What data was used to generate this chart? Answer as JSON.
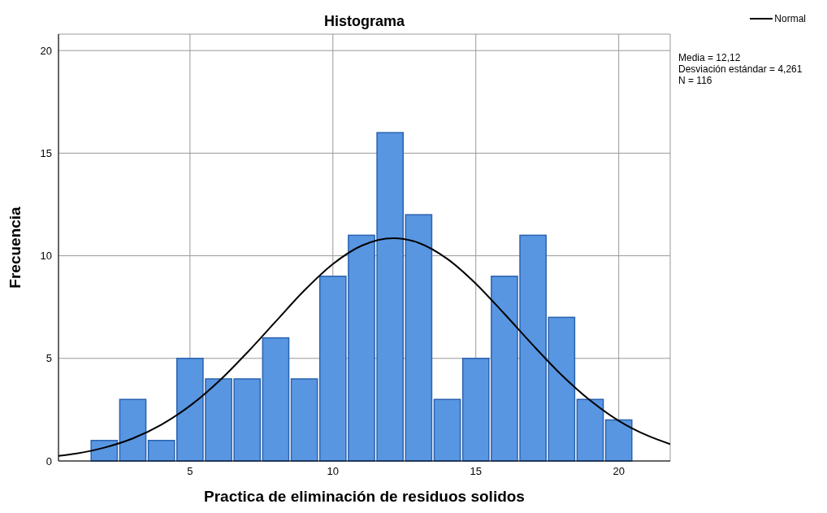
{
  "chart_data": {
    "type": "histogram",
    "title": "Histograma",
    "xlabel": "Practica de eliminación de residuos solidos",
    "ylabel": "Frecuencia",
    "bins": [
      1.5,
      2.5,
      3.5,
      4.5,
      5.5,
      6.5,
      7.5,
      8.5,
      9.5,
      10.5,
      11.5,
      12.5,
      13.5,
      14.5,
      15.5,
      16.5,
      17.5,
      18.5,
      19.5,
      20.5
    ],
    "values": [
      1,
      3,
      1,
      5,
      4,
      4,
      6,
      4,
      9,
      11,
      16,
      12,
      3,
      5,
      9,
      11,
      7,
      3,
      2
    ],
    "color": "#5896e2",
    "series": [
      {
        "type": "line",
        "name": "Normal",
        "color": "#000000",
        "x": [
          0.4,
          1,
          2,
          3,
          4,
          5,
          6,
          7,
          8,
          9,
          10,
          11,
          12.12,
          13,
          14,
          15,
          16,
          17,
          18,
          19,
          20,
          21,
          21.8
        ],
        "values": [
          0.25,
          0.36,
          0.65,
          1.1,
          1.77,
          2.69,
          3.87,
          5.28,
          6.8,
          8.31,
          9.6,
          10.49,
          10.86,
          10.63,
          9.85,
          8.64,
          7.17,
          5.64,
          4.19,
          2.95,
          1.96,
          1.24,
          0.82
        ]
      }
    ],
    "annotations": [
      "Media = 12,12",
      "Desviación estándar = 4,261",
      "N = 116"
    ],
    "xlim": [
      0.4,
      21.8
    ],
    "xticks": [
      5,
      10,
      15,
      20
    ],
    "ylim": [
      0,
      20.8
    ],
    "yticks": [
      0,
      5,
      10,
      15,
      20
    ],
    "grid": true,
    "legend": "top right",
    "marker": "none",
    "line_style": "solid"
  }
}
